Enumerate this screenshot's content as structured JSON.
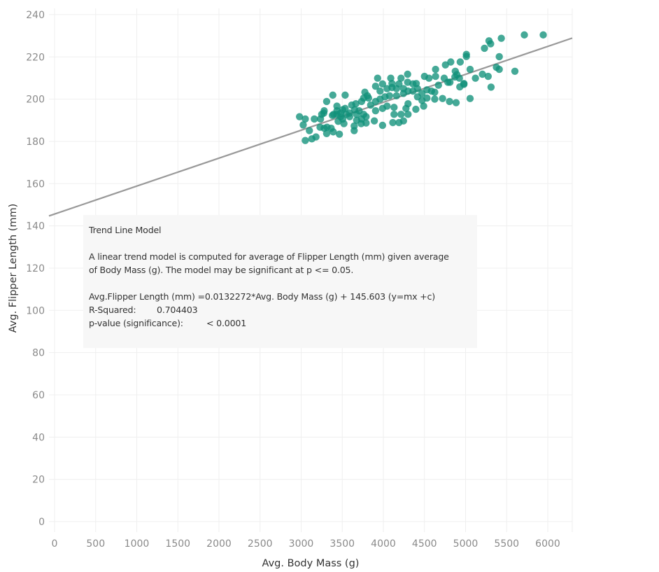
{
  "chart_data": {
    "type": "scatter",
    "xlabel": "Avg. Body Mass (g)",
    "ylabel": "Avg. Flipper Length (mm)",
    "xlim": [
      0,
      6300
    ],
    "ylim": [
      0,
      240
    ],
    "xticks": [
      0,
      500,
      1000,
      1500,
      2000,
      2500,
      3000,
      3500,
      4000,
      4500,
      5000,
      5500,
      6000
    ],
    "yticks": [
      0,
      20,
      40,
      60,
      80,
      100,
      120,
      140,
      160,
      180,
      200,
      220,
      240
    ],
    "grid": true,
    "point_color": "#11917a",
    "trend_color": "#999999",
    "trend_line": {
      "slope": 0.0132272,
      "intercept": 145.603
    },
    "points": [
      [
        2980,
        191.7
      ],
      [
        3050,
        190.6
      ],
      [
        3025,
        187.8
      ],
      [
        3100,
        185.1
      ],
      [
        3050,
        180.4
      ],
      [
        3130,
        181.2
      ],
      [
        3180,
        182.1
      ],
      [
        3160,
        190.6
      ],
      [
        3235,
        190.6
      ],
      [
        3280,
        194.5
      ],
      [
        3310,
        198.9
      ],
      [
        3385,
        201.9
      ],
      [
        3535,
        201.9
      ],
      [
        3275,
        193.4
      ],
      [
        3380,
        192.3
      ],
      [
        3435,
        196.7
      ],
      [
        3435,
        194.5
      ],
      [
        3505,
        195.0
      ],
      [
        3535,
        195.6
      ],
      [
        3615,
        197.2
      ],
      [
        3665,
        197.8
      ],
      [
        3735,
        198.9
      ],
      [
        3775,
        203.3
      ],
      [
        3805,
        201.6
      ],
      [
        3930,
        209.9
      ],
      [
        3990,
        207.2
      ],
      [
        4090,
        209.9
      ],
      [
        4105,
        207.4
      ],
      [
        4215,
        209.9
      ],
      [
        4190,
        207.2
      ],
      [
        4295,
        211.8
      ],
      [
        4295,
        208.0
      ],
      [
        4500,
        210.8
      ],
      [
        4555,
        209.9
      ],
      [
        4635,
        214.1
      ],
      [
        4635,
        210.8
      ],
      [
        4740,
        209.9
      ],
      [
        4755,
        216.2
      ],
      [
        4820,
        217.6
      ],
      [
        4935,
        217.6
      ],
      [
        5010,
        221.2
      ],
      [
        5010,
        220.2
      ],
      [
        5055,
        214.1
      ],
      [
        4875,
        213.2
      ],
      [
        4895,
        211.6
      ],
      [
        4980,
        207.4
      ],
      [
        4930,
        205.8
      ],
      [
        5120,
        209.9
      ],
      [
        5205,
        211.8
      ],
      [
        5275,
        210.8
      ],
      [
        5310,
        205.7
      ],
      [
        5375,
        215.1
      ],
      [
        5410,
        214.1
      ],
      [
        5410,
        220.1
      ],
      [
        5230,
        224.1
      ],
      [
        5285,
        227.6
      ],
      [
        5305,
        226.2
      ],
      [
        5435,
        228.8
      ],
      [
        5715,
        230.4
      ],
      [
        5945,
        230.4
      ],
      [
        5600,
        213.2
      ],
      [
        5055,
        200.3
      ],
      [
        4885,
        198.3
      ],
      [
        4805,
        198.9
      ],
      [
        4720,
        200.3
      ],
      [
        4625,
        200.0
      ],
      [
        4625,
        203.3
      ],
      [
        4490,
        196.7
      ],
      [
        4395,
        195.2
      ],
      [
        4300,
        197.8
      ],
      [
        4300,
        192.8
      ],
      [
        4215,
        192.8
      ],
      [
        4130,
        192.8
      ],
      [
        4115,
        188.9
      ],
      [
        4190,
        188.9
      ],
      [
        4245,
        189.7
      ],
      [
        3990,
        187.6
      ],
      [
        3890,
        189.7
      ],
      [
        3790,
        188.7
      ],
      [
        3730,
        188.4
      ],
      [
        3645,
        185.1
      ],
      [
        3645,
        187.3
      ],
      [
        3520,
        188.4
      ],
      [
        3465,
        183.4
      ],
      [
        3390,
        184.5
      ],
      [
        3310,
        183.7
      ],
      [
        3230,
        186.7
      ],
      [
        3315,
        186.7
      ],
      [
        3395,
        192.8
      ],
      [
        3480,
        191.7
      ],
      [
        3590,
        191.7
      ],
      [
        3675,
        192.8
      ],
      [
        3760,
        192.8
      ],
      [
        3790,
        191.7
      ],
      [
        3845,
        197.2
      ],
      [
        3905,
        198.9
      ],
      [
        3960,
        200.0
      ],
      [
        4020,
        201.1
      ],
      [
        4075,
        201.6
      ],
      [
        4160,
        201.6
      ],
      [
        4245,
        202.7
      ],
      [
        4300,
        203.8
      ],
      [
        4360,
        203.8
      ],
      [
        4415,
        205.0
      ],
      [
        4470,
        202.7
      ],
      [
        4530,
        204.4
      ],
      [
        4415,
        201.1
      ],
      [
        4470,
        199.4
      ],
      [
        3990,
        195.6
      ],
      [
        4045,
        196.7
      ],
      [
        4130,
        196.1
      ],
      [
        3905,
        194.5
      ],
      [
        3675,
        190.0
      ],
      [
        3590,
        193.4
      ],
      [
        3450,
        189.5
      ],
      [
        3280,
        186.2
      ],
      [
        3365,
        186.2
      ],
      [
        3960,
        203.8
      ],
      [
        4045,
        205.0
      ],
      [
        4105,
        205.5
      ],
      [
        4160,
        205.0
      ],
      [
        4245,
        205.0
      ],
      [
        3905,
        206.1
      ],
      [
        3760,
        200.5
      ],
      [
        3820,
        200.5
      ],
      [
        3550,
        192.8
      ],
      [
        4275,
        195.6
      ],
      [
        4360,
        207.2
      ],
      [
        4400,
        207.4
      ],
      [
        4670,
        206.6
      ],
      [
        4785,
        208.0
      ],
      [
        4810,
        208.0
      ],
      [
        4980,
        207.0
      ],
      [
        4870,
        210.5
      ],
      [
        4925,
        209.9
      ],
      [
        4530,
        200.5
      ],
      [
        4585,
        203.8
      ],
      [
        3650,
        195.0
      ],
      [
        3705,
        194.5
      ],
      [
        3480,
        193.4
      ],
      [
        3435,
        192.8
      ],
      [
        3250,
        192.8
      ],
      [
        3505,
        190.6
      ],
      [
        3735,
        190.6
      ]
    ],
    "annotation": {
      "title": "Trend Line Model",
      "description_line1": "A linear trend model is computed for average of Flipper Length (mm) given average",
      "description_line2": "of Body Mass (g).  The model may be significant at p <= 0.05.",
      "equation": "Avg.Flipper Length (mm) =0.0132272*Avg. Body Mass (g) + 145.603 (y=mx +c)",
      "r_squared_label": "R-Squared:",
      "r_squared_value": "0.704403",
      "p_value_label": "p-value (significance):",
      "p_value_value": "< 0.0001"
    }
  }
}
